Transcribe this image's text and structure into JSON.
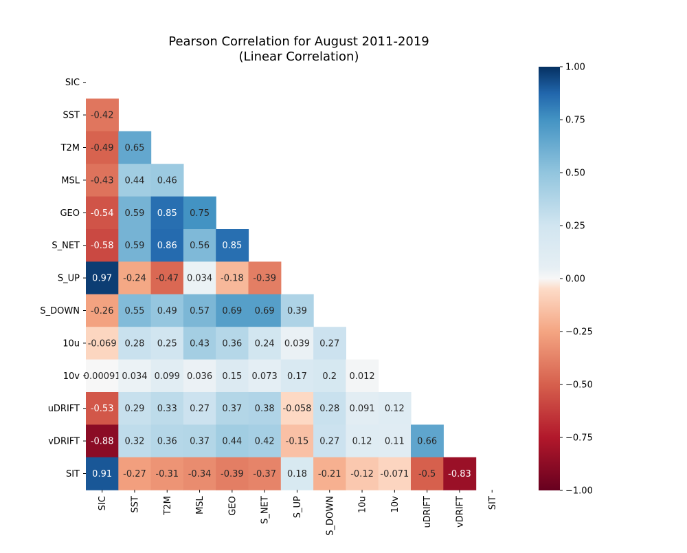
{
  "chart_data": {
    "type": "heatmap",
    "title": "Pearson Correlation for August 2011-2019",
    "subtitle": "(Linear Correlation)",
    "variables": [
      "SIC",
      "SST",
      "T2M",
      "MSL",
      "GEO",
      "S_NET",
      "S_UP",
      "S_DOWN",
      "10u",
      "10v",
      "uDRIFT",
      "vDRIFT",
      "SIT"
    ],
    "mask": "upper-triangle-including-diagonal",
    "lower_triangle": [
      [],
      [
        "-0.42"
      ],
      [
        "-0.49",
        "0.65"
      ],
      [
        "-0.43",
        "0.44",
        "0.46"
      ],
      [
        "-0.54",
        "0.59",
        "0.85",
        "0.75"
      ],
      [
        "-0.58",
        "0.59",
        "0.86",
        "0.56",
        "0.85"
      ],
      [
        "0.97",
        "-0.24",
        "-0.47",
        "0.034",
        "-0.18",
        "-0.39"
      ],
      [
        "-0.26",
        "0.55",
        "0.49",
        "0.57",
        "0.69",
        "0.69",
        "0.39"
      ],
      [
        "-0.069",
        "0.28",
        "0.25",
        "0.43",
        "0.36",
        "0.24",
        "0.039",
        "0.27"
      ],
      [
        "0.00091",
        "0.034",
        "0.099",
        "0.036",
        "0.15",
        "0.073",
        "0.17",
        "0.2",
        "0.012"
      ],
      [
        "-0.53",
        "0.29",
        "0.33",
        "0.27",
        "0.37",
        "0.38",
        "-0.058",
        "0.28",
        "0.091",
        "0.12"
      ],
      [
        "-0.88",
        "0.32",
        "0.36",
        "0.37",
        "0.44",
        "0.42",
        "-0.15",
        "0.27",
        "0.12",
        "0.11",
        "0.66"
      ],
      [
        "0.91",
        "-0.27",
        "-0.31",
        "-0.34",
        "-0.39",
        "-0.37",
        "0.18",
        "-0.21",
        "-0.12",
        "-0.071",
        "-0.5",
        "-0.83"
      ]
    ],
    "colormap": "RdBu",
    "vmin": -1.0,
    "vmax": 1.0,
    "colorbar_ticks": [
      "1.00",
      "0.75",
      "0.50",
      "0.25",
      "0.00",
      "−0.25",
      "−0.50",
      "−0.75",
      "−1.00"
    ],
    "colorbar_placement": "right"
  }
}
